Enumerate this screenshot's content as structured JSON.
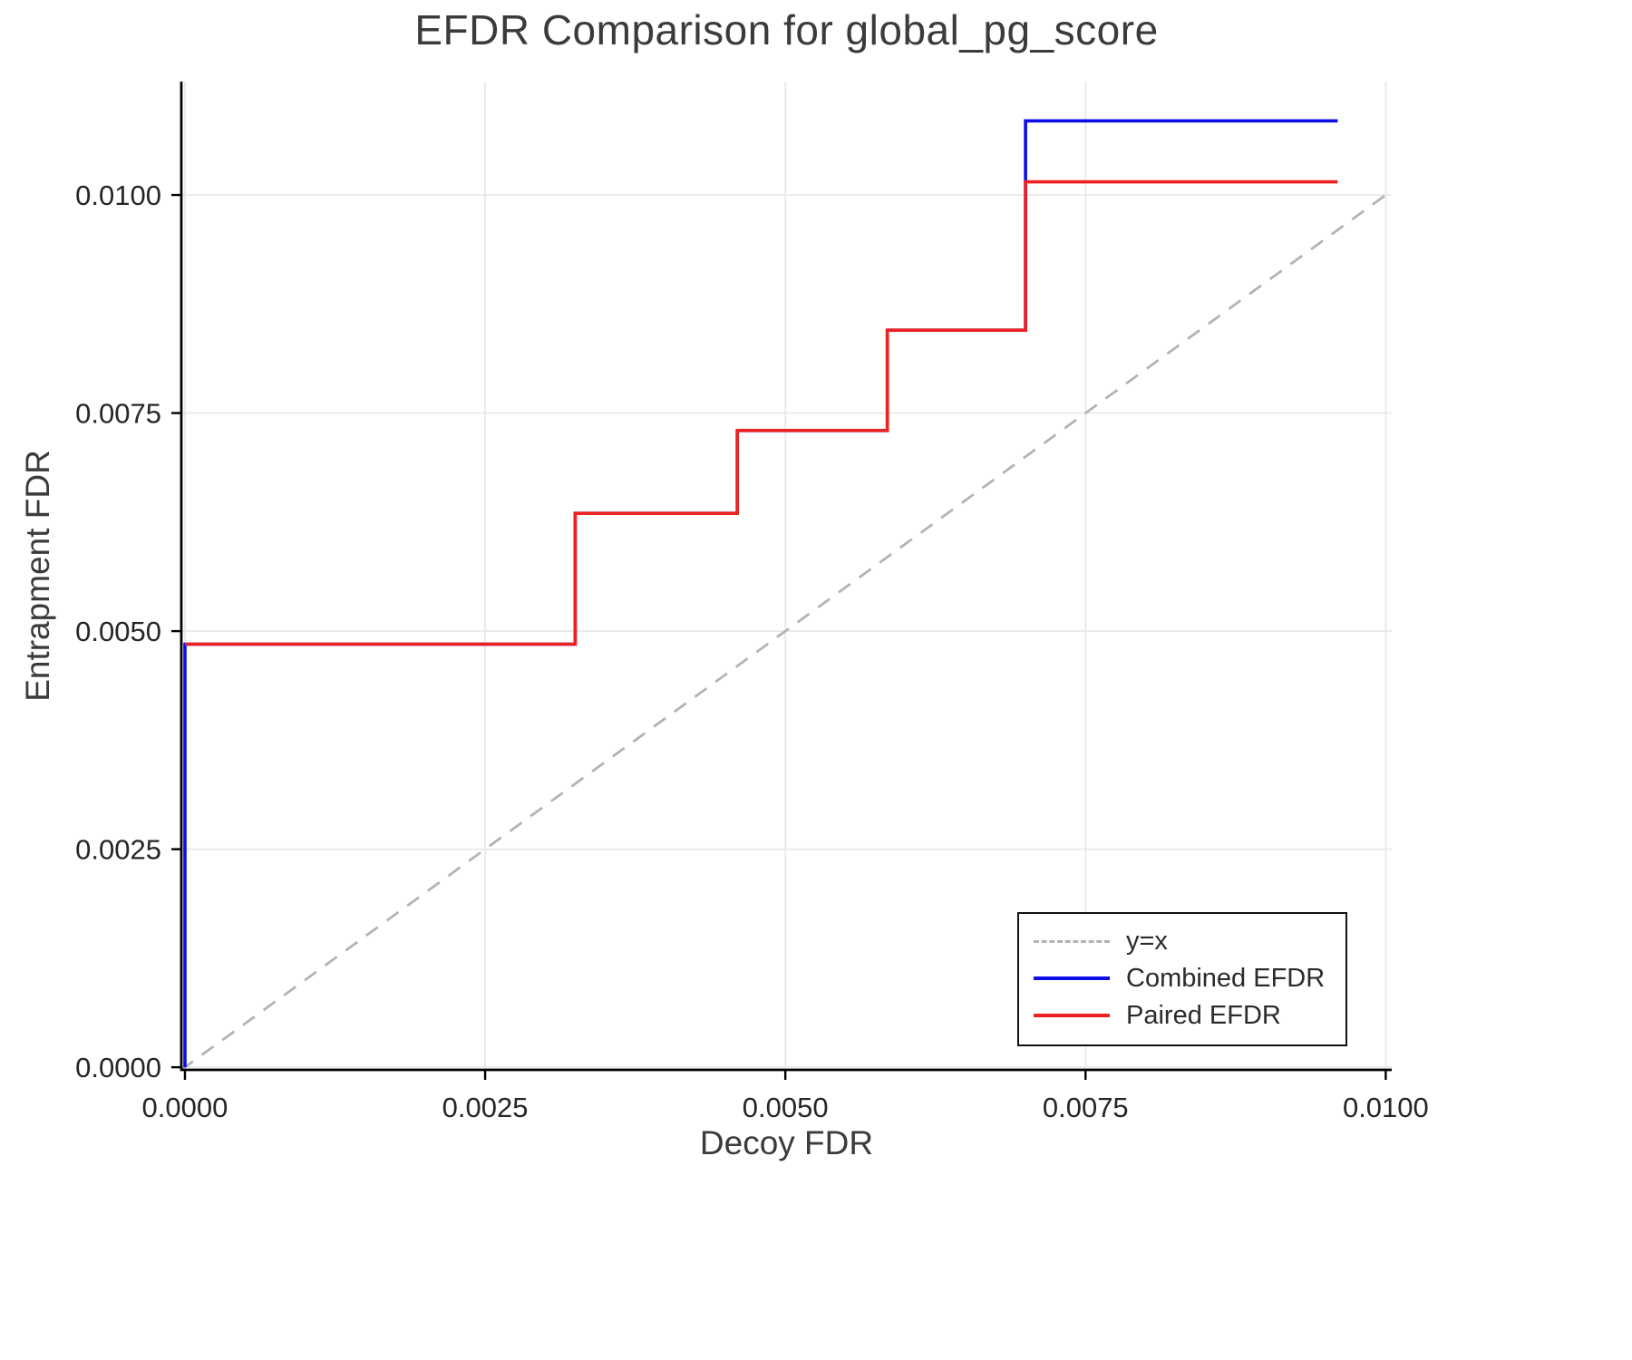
{
  "chart_data": {
    "type": "line",
    "title": "EFDR Comparison for global_pg_score",
    "xlabel": "Decoy FDR",
    "ylabel": "Entrapment FDR",
    "xlim": [
      -3e-05,
      0.01005
    ],
    "ylim": [
      -3e-05,
      0.0113
    ],
    "grid": true,
    "legend_position": "bottom-right",
    "xticks": {
      "values": [
        0.0,
        0.0025,
        0.005,
        0.0075,
        0.01
      ],
      "labels": [
        "0.0000",
        "0.0025",
        "0.0050",
        "0.0075",
        "0.0100"
      ]
    },
    "yticks": {
      "values": [
        0.0,
        0.0025,
        0.005,
        0.0075,
        0.01
      ],
      "labels": [
        "0.0000",
        "0.0025",
        "0.0050",
        "0.0075",
        "0.0100"
      ]
    },
    "colors": {
      "grid": "#e8e8e8",
      "axis": "#000000",
      "tick_text": "#262626",
      "title_text": "#3b3b3b"
    },
    "series": [
      {
        "name": "y=x",
        "color": "#b3b3b3",
        "style": "dashed",
        "points": [
          [
            -3e-05,
            -3e-05
          ],
          [
            0.01005,
            0.01005
          ]
        ]
      },
      {
        "name": "Combined EFDR",
        "color": "#0d0de8",
        "style": "solid",
        "points": [
          [
            0.0,
            0.0
          ],
          [
            0.0,
            0.00485
          ],
          [
            0.00325,
            0.00485
          ],
          [
            0.00325,
            0.00635
          ],
          [
            0.0046,
            0.00635
          ],
          [
            0.0046,
            0.0073
          ],
          [
            0.00585,
            0.0073
          ],
          [
            0.00585,
            0.00845
          ],
          [
            0.007,
            0.00845
          ],
          [
            0.007,
            0.01085
          ],
          [
            0.0096,
            0.01085
          ]
        ]
      },
      {
        "name": "Paired EFDR",
        "color": "#ee2020",
        "style": "solid",
        "points": [
          [
            0.0,
            0.00485
          ],
          [
            0.00325,
            0.00485
          ],
          [
            0.00325,
            0.00635
          ],
          [
            0.0046,
            0.00635
          ],
          [
            0.0046,
            0.0073
          ],
          [
            0.00585,
            0.0073
          ],
          [
            0.00585,
            0.00845
          ],
          [
            0.007,
            0.00845
          ],
          [
            0.007,
            0.01015
          ],
          [
            0.0096,
            0.01015
          ]
        ]
      }
    ]
  }
}
